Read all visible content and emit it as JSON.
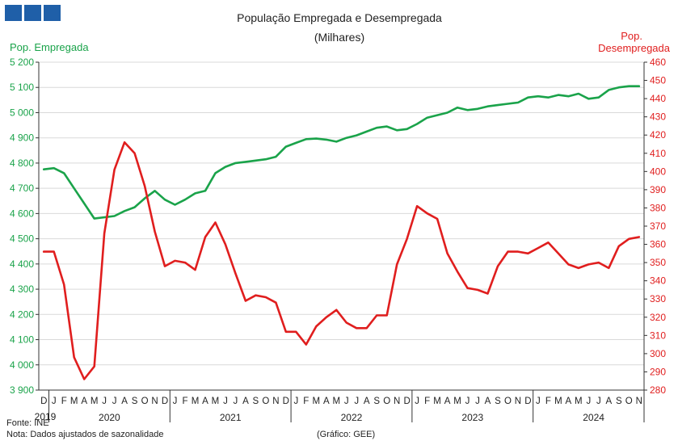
{
  "logo_blocks": [
    "block-1",
    "block-2",
    "block-3"
  ],
  "chart_data": {
    "type": "line",
    "title": "População Empregada e Desempregada",
    "subtitle": "(Milhares)",
    "left_axis_label": "Pop. Empregada",
    "right_axis_label_line1": "Pop.",
    "right_axis_label_line2": "Desempregada",
    "left_ticks": [
      "3 900",
      "4 000",
      "4 100",
      "4 200",
      "4 300",
      "4 400",
      "4 500",
      "4 600",
      "4 700",
      "4 800",
      "4 900",
      "5 000",
      "5 100",
      "5 200"
    ],
    "right_ticks": [
      "280",
      "290",
      "300",
      "310",
      "320",
      "330",
      "340",
      "350",
      "360",
      "370",
      "380",
      "390",
      "400",
      "410",
      "420",
      "430",
      "440",
      "450",
      "460"
    ],
    "ylim_left": [
      3900,
      5200
    ],
    "ylim_right": [
      280,
      460
    ],
    "month_labels": [
      "D",
      "J",
      "F",
      "M",
      "A",
      "M",
      "J",
      "J",
      "A",
      "S",
      "O",
      "N",
      "D",
      "J",
      "F",
      "M",
      "A",
      "M",
      "J",
      "J",
      "A",
      "S",
      "O",
      "N",
      "D",
      "J",
      "F",
      "M",
      "A",
      "M",
      "J",
      "J",
      "A",
      "S",
      "O",
      "N",
      "D",
      "J",
      "F",
      "M",
      "A",
      "M",
      "J",
      "J",
      "A",
      "S",
      "O",
      "N",
      "D",
      "J",
      "F",
      "M",
      "A",
      "M",
      "J",
      "J",
      "A",
      "S",
      "O",
      "N"
    ],
    "year_labels": [
      "2019",
      "2020",
      "2021",
      "2022",
      "2023",
      "2024"
    ],
    "series": [
      {
        "name": "Pop. Empregada",
        "axis": "left",
        "color": "#1aa34a",
        "values": [
          4775,
          4780,
          4760,
          4700,
          4640,
          4580,
          4585,
          4590,
          4610,
          4625,
          4660,
          4690,
          4655,
          4635,
          4655,
          4680,
          4690,
          4760,
          4785,
          4800,
          4805,
          4810,
          4815,
          4825,
          4865,
          4880,
          4895,
          4897,
          4893,
          4885,
          4900,
          4910,
          4925,
          4940,
          4945,
          4930,
          4935,
          4955,
          4980,
          4990,
          5000,
          5020,
          5010,
          5015,
          5025,
          5030,
          5035,
          5040,
          5060,
          5065,
          5060,
          5070,
          5065,
          5075,
          5055,
          5060,
          5090,
          5100,
          5105,
          5105
        ]
      },
      {
        "name": "Pop. Desempregada",
        "axis": "right",
        "color": "#e01e1e",
        "values": [
          356,
          356,
          338,
          298,
          286,
          293,
          366,
          401,
          416,
          410,
          392,
          367,
          348,
          351,
          350,
          346,
          364,
          372,
          360,
          344,
          329,
          332,
          331,
          328,
          312,
          312,
          305,
          315,
          320,
          324,
          317,
          314,
          314,
          321,
          321,
          349,
          363,
          381,
          377,
          374,
          355,
          345,
          336,
          335,
          333,
          348,
          356,
          356,
          355,
          358,
          361,
          355,
          349,
          347,
          349,
          350,
          347,
          359,
          363,
          364
        ]
      }
    ],
    "source": "Fonte: INE",
    "note": "Nota: Dados ajustados de sazonalidade",
    "credit": "(Gráfico: GEE)",
    "grid": "horizontal",
    "legend": "none"
  }
}
